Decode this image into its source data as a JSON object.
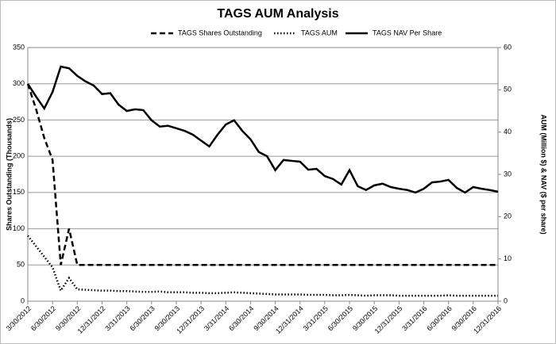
{
  "chart_data": {
    "type": "line",
    "title": "TAGS AUM Analysis",
    "y_label": "Shares Outstanding (Thousands)",
    "y2_label": "AUM (Million $) & NAV ($ per share)",
    "categories": [
      "3/30/2012",
      null,
      null,
      "6/30/2012",
      null,
      null,
      "9/30/2012",
      null,
      null,
      "12/31/2012",
      null,
      null,
      "3/31/2013",
      null,
      null,
      "6/30/2013",
      null,
      null,
      "9/30/2013",
      null,
      null,
      "12/31/2013",
      null,
      null,
      "3/31/2014",
      null,
      null,
      "6/30/2014",
      null,
      null,
      "9/30/2014",
      null,
      null,
      "12/31/2014",
      null,
      null,
      "3/31/2015",
      null,
      null,
      "6/30/2015",
      null,
      null,
      "9/30/2015",
      null,
      null,
      "12/31/2015",
      null,
      null,
      "3/31/2016",
      null,
      null,
      "6/30/2016",
      null,
      null,
      "9/30/2016",
      null,
      null,
      "12/31/2016"
    ],
    "series": [
      {
        "name": "TAGS Shares Outstanding",
        "color": "#000000",
        "style": "dashed",
        "axis": "y",
        "values": [
          300,
          265,
          225,
          195,
          50,
          100,
          50,
          50,
          50,
          50,
          50,
          50,
          50,
          50,
          50,
          50,
          50,
          50,
          50,
          50,
          50,
          50,
          50,
          50,
          50,
          50,
          50,
          50,
          50,
          50,
          50,
          50,
          50,
          50,
          50,
          50,
          50,
          50,
          50,
          50,
          50,
          50,
          50,
          50,
          50,
          50,
          50,
          50,
          50,
          50,
          50,
          50,
          50,
          50,
          50,
          50,
          50,
          50
        ]
      },
      {
        "name": "TAGS AUM",
        "color": "#000000",
        "style": "dotted",
        "axis": "y2",
        "values": [
          15.5,
          13,
          10.5,
          8,
          2.5,
          5.5,
          2.8,
          2.7,
          2.6,
          2.5,
          2.5,
          2.4,
          2.4,
          2.3,
          2.2,
          2.2,
          2.3,
          2.1,
          2.1,
          2.1,
          2,
          2,
          1.9,
          1.9,
          2,
          2.1,
          2,
          1.9,
          1.8,
          1.7,
          1.6,
          1.6,
          1.6,
          1.6,
          1.5,
          1.5,
          1.5,
          1.4,
          1.4,
          1.5,
          1.4,
          1.3,
          1.4,
          1.4,
          1.4,
          1.3,
          1.3,
          1.3,
          1.3,
          1.3,
          1.3,
          1.4,
          1.3,
          1.3,
          1.3,
          1.3,
          1.3,
          1.3
        ]
      },
      {
        "name": "TAGS NAV Per Share",
        "color": "#000000",
        "style": "solid",
        "axis": "y2",
        "values": [
          51.4,
          48.4,
          45.6,
          49.5,
          55.5,
          55.1,
          53.3,
          52,
          51,
          49,
          49.2,
          46.5,
          45,
          45.4,
          45.2,
          42.8,
          41.3,
          41.5,
          40.9,
          40.3,
          39.4,
          38,
          36.6,
          39.4,
          41.8,
          42.8,
          40.3,
          38.3,
          35.3,
          34.3,
          31,
          33.4,
          33.2,
          33,
          31.1,
          31.3,
          29.6,
          28.9,
          27.6,
          31,
          27.2,
          26.3,
          27.4,
          27.8,
          27,
          26.6,
          26.3,
          25.7,
          26.6,
          28.1,
          28.3,
          28.7,
          26.8,
          25.7,
          27,
          26.6,
          26.3,
          25.9
        ]
      }
    ],
    "ylim": [
      0,
      350
    ],
    "yticks": [
      0,
      50,
      100,
      150,
      200,
      250,
      300,
      350
    ],
    "y2lim": [
      0,
      60
    ],
    "y2ticks": [
      0,
      10,
      20,
      30,
      40,
      50,
      60
    ],
    "grid": true,
    "legend": "top"
  }
}
